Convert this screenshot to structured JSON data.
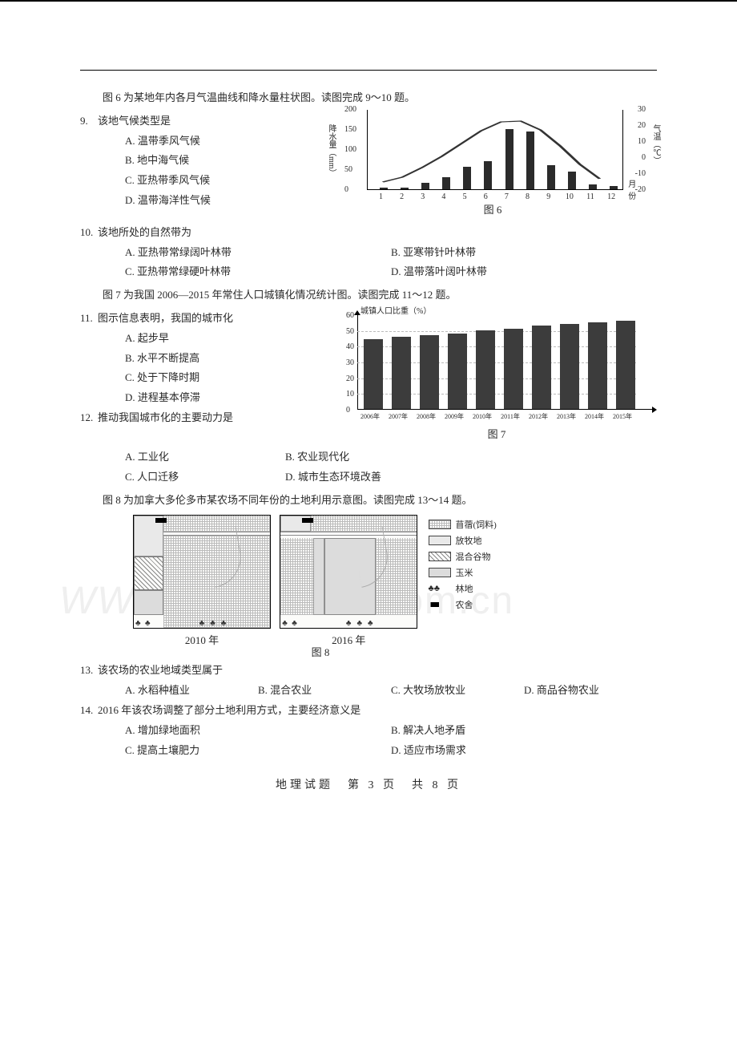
{
  "intro6": "图 6 为某地年内各月气温曲线和降水量柱状图。读图完成 9～10 题。",
  "q9": {
    "num": "9.",
    "stem": "该地气候类型是",
    "opts": {
      "A": "A. 温带季风气候",
      "B": "B. 地中海气候",
      "C": "C. 亚热带季风气候",
      "D": "D. 温带海洋性气候"
    }
  },
  "q10": {
    "num": "10.",
    "stem": "该地所处的自然带为",
    "opts": {
      "A": "A. 亚热带常绿阔叶林带",
      "B": "B. 亚寒带针叶林带",
      "C": "C. 亚热带常绿硬叶林带",
      "D": "D. 温带落叶阔叶林带"
    }
  },
  "intro7": "图 7 为我国 2006—2015 年常住人口城镇化情况统计图。读图完成 11～12 题。",
  "q11": {
    "num": "11.",
    "stem": "图示信息表明，我国的城市化",
    "opts": {
      "A": "A. 起步早",
      "B": "B. 水平不断提高",
      "C": "C. 处于下降时期",
      "D": "D. 进程基本停滞"
    }
  },
  "q12": {
    "num": "12.",
    "stem": "推动我国城市化的主要动力是",
    "opts": {
      "A": "A. 工业化",
      "B": "B. 农业现代化",
      "C": "C. 人口迁移",
      "D": "D. 城市生态环境改善"
    }
  },
  "intro8": "图 8 为加拿大多伦多市某农场不同年份的土地利用示意图。读图完成 13～14 题。",
  "q13": {
    "num": "13.",
    "stem": "该农场的农业地域类型属于",
    "opts": {
      "A": "A. 水稻种植业",
      "B": "B. 混合农业",
      "C": "C. 大牧场放牧业",
      "D": "D. 商品谷物农业"
    }
  },
  "q14": {
    "num": "14.",
    "stem": "2016 年该农场调整了部分土地利用方式，主要经济意义是",
    "opts": {
      "A": "A. 增加绿地面积",
      "B": "B. 解决人地矛盾",
      "C": "C. 提高土壤肥力",
      "D": "D. 适应市场需求"
    }
  },
  "chart6": {
    "type": "bar+line",
    "yLeftLabel": "降水量（mm）",
    "yRightLabel": "气温（℃）",
    "yLeftTicks": [
      0,
      50,
      100,
      150,
      200
    ],
    "yRightTicks": [
      -20,
      -10,
      0,
      10,
      20,
      30
    ],
    "xTicks": [
      "1",
      "2",
      "3",
      "4",
      "5",
      "6",
      "7",
      "8",
      "9",
      "10",
      "11",
      "12",
      "月份"
    ],
    "barsPx": [
      2,
      2,
      8,
      15,
      28,
      35,
      75,
      72,
      30,
      22,
      6,
      4
    ],
    "tempPts": [
      0.1,
      0.16,
      0.28,
      0.42,
      0.58,
      0.74,
      0.85,
      0.86,
      0.75,
      0.55,
      0.32,
      0.14
    ],
    "caption": "图 6",
    "barColor": "#2b2b2b",
    "lineColor": "#333"
  },
  "chart7": {
    "type": "bar",
    "title": "城镇人口比重（%）",
    "yTicks": [
      0,
      10,
      20,
      30,
      40,
      50,
      60
    ],
    "years": [
      "2006年",
      "2007年",
      "2008年",
      "2009年",
      "2010年",
      "2011年",
      "2012年",
      "2013年",
      "2014年",
      "2015年"
    ],
    "valuesPct": [
      44,
      46,
      47,
      48,
      50,
      51,
      53,
      54,
      55,
      56
    ],
    "caption": "图 7",
    "barColor": "#3c3c3c",
    "gridColor": "#bbbbbb"
  },
  "fig8": {
    "year1": "2010 年",
    "year2": "2016 年",
    "caption": "图 8",
    "legend": {
      "pasture": "苜蓿(饲料)",
      "grazing": "放牧地",
      "crop": "混合谷物",
      "corn": "玉米",
      "wood": "林地",
      "house": "农舍"
    },
    "treeGlyph": "♣",
    "houseGlyph": "■"
  },
  "watermark": {
    "left": "WW",
    "right": ".com.cn"
  },
  "footer": "地理试题　第 3 页　共 8 页"
}
